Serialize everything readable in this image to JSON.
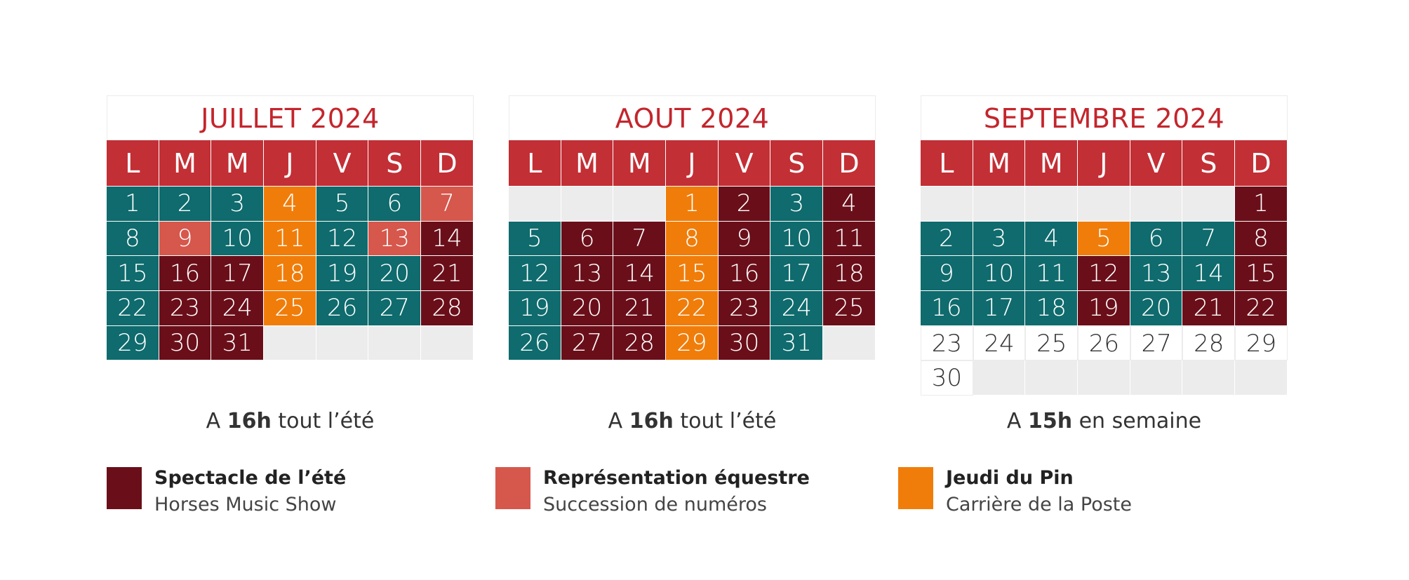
{
  "weekday_headers": [
    "L",
    "M",
    "M",
    "J",
    "V",
    "S",
    "D"
  ],
  "months": [
    {
      "title": "JUILLET 2024",
      "cells": [
        [
          "1",
          "teal"
        ],
        [
          "2",
          "teal"
        ],
        [
          "3",
          "teal"
        ],
        [
          "4",
          "orange"
        ],
        [
          "5",
          "teal"
        ],
        [
          "6",
          "teal"
        ],
        [
          "7",
          "salmon"
        ],
        [
          "8",
          "teal"
        ],
        [
          "9",
          "salmon"
        ],
        [
          "10",
          "teal"
        ],
        [
          "11",
          "orange"
        ],
        [
          "12",
          "teal"
        ],
        [
          "13",
          "salmon"
        ],
        [
          "14",
          "maroon"
        ],
        [
          "15",
          "teal"
        ],
        [
          "16",
          "maroon"
        ],
        [
          "17",
          "maroon"
        ],
        [
          "18",
          "orange"
        ],
        [
          "19",
          "teal"
        ],
        [
          "20",
          "teal"
        ],
        [
          "21",
          "maroon"
        ],
        [
          "22",
          "teal"
        ],
        [
          "23",
          "maroon"
        ],
        [
          "24",
          "maroon"
        ],
        [
          "25",
          "orange"
        ],
        [
          "26",
          "teal"
        ],
        [
          "27",
          "teal"
        ],
        [
          "28",
          "maroon"
        ],
        [
          "29",
          "teal"
        ],
        [
          "30",
          "maroon"
        ],
        [
          "31",
          "maroon"
        ],
        [
          "",
          "empty"
        ],
        [
          "",
          "empty"
        ],
        [
          "",
          "empty"
        ],
        [
          "",
          "empty"
        ]
      ],
      "time_prefix": "A ",
      "time_bold": "16h",
      "time_suffix": " tout l’été"
    },
    {
      "title": "AOUT 2024",
      "cells": [
        [
          "",
          "empty"
        ],
        [
          "",
          "empty"
        ],
        [
          "",
          "empty"
        ],
        [
          "1",
          "orange"
        ],
        [
          "2",
          "maroon"
        ],
        [
          "3",
          "teal"
        ],
        [
          "4",
          "maroon"
        ],
        [
          "5",
          "teal"
        ],
        [
          "6",
          "maroon"
        ],
        [
          "7",
          "maroon"
        ],
        [
          "8",
          "orange"
        ],
        [
          "9",
          "maroon"
        ],
        [
          "10",
          "teal"
        ],
        [
          "11",
          "maroon"
        ],
        [
          "12",
          "teal"
        ],
        [
          "13",
          "maroon"
        ],
        [
          "14",
          "maroon"
        ],
        [
          "15",
          "orange"
        ],
        [
          "16",
          "maroon"
        ],
        [
          "17",
          "teal"
        ],
        [
          "18",
          "maroon"
        ],
        [
          "19",
          "teal"
        ],
        [
          "20",
          "maroon"
        ],
        [
          "21",
          "maroon"
        ],
        [
          "22",
          "orange"
        ],
        [
          "23",
          "maroon"
        ],
        [
          "24",
          "teal"
        ],
        [
          "25",
          "maroon"
        ],
        [
          "26",
          "teal"
        ],
        [
          "27",
          "maroon"
        ],
        [
          "28",
          "maroon"
        ],
        [
          "29",
          "orange"
        ],
        [
          "30",
          "maroon"
        ],
        [
          "31",
          "teal"
        ],
        [
          "",
          "empty"
        ]
      ],
      "time_prefix": "A ",
      "time_bold": "16h",
      "time_suffix": " tout l’été"
    },
    {
      "title": "SEPTEMBRE 2024",
      "cells": [
        [
          "",
          "empty"
        ],
        [
          "",
          "empty"
        ],
        [
          "",
          "empty"
        ],
        [
          "",
          "empty"
        ],
        [
          "",
          "empty"
        ],
        [
          "",
          "empty"
        ],
        [
          "1",
          "maroon"
        ],
        [
          "2",
          "teal"
        ],
        [
          "3",
          "teal"
        ],
        [
          "4",
          "teal"
        ],
        [
          "5",
          "orange"
        ],
        [
          "6",
          "teal"
        ],
        [
          "7",
          "teal"
        ],
        [
          "8",
          "maroon"
        ],
        [
          "9",
          "teal"
        ],
        [
          "10",
          "teal"
        ],
        [
          "11",
          "teal"
        ],
        [
          "12",
          "maroon"
        ],
        [
          "13",
          "teal"
        ],
        [
          "14",
          "teal"
        ],
        [
          "15",
          "maroon"
        ],
        [
          "16",
          "teal"
        ],
        [
          "17",
          "teal"
        ],
        [
          "18",
          "teal"
        ],
        [
          "19",
          "maroon"
        ],
        [
          "20",
          "teal"
        ],
        [
          "21",
          "maroon"
        ],
        [
          "22",
          "maroon"
        ],
        [
          "23",
          "white"
        ],
        [
          "24",
          "white"
        ],
        [
          "25",
          "white"
        ],
        [
          "26",
          "white"
        ],
        [
          "27",
          "white"
        ],
        [
          "28",
          "white"
        ],
        [
          "29",
          "white"
        ],
        [
          "30",
          "white"
        ],
        [
          "",
          "empty"
        ],
        [
          "",
          "empty"
        ],
        [
          "",
          "empty"
        ],
        [
          "",
          "empty"
        ],
        [
          "",
          "empty"
        ],
        [
          "",
          "empty"
        ]
      ],
      "time_prefix": "A ",
      "time_bold": "15h",
      "time_suffix": " en semaine"
    }
  ],
  "legend": [
    {
      "title": "Spectacle de l’été",
      "subtitle": "Horses Music Show",
      "color": "#6a0f1a"
    },
    {
      "title": "Représentation équestre",
      "subtitle": "Succession de numéros",
      "color": "#d6574c"
    },
    {
      "title": "Jeudi du Pin",
      "subtitle": "Carrière de la Poste",
      "color": "#f07d0a"
    }
  ]
}
